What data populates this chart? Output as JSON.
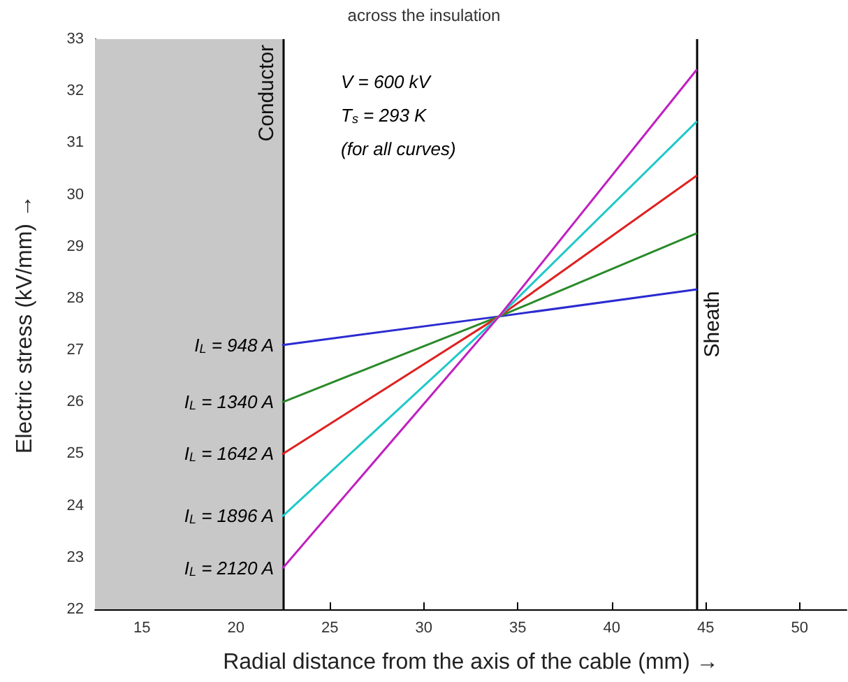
{
  "chart_data": {
    "type": "line",
    "title": "across the insulation",
    "xlabel": "Radial distance from the axis of the cable (mm) →",
    "ylabel": "Electric stress (kV/mm) →",
    "xlim": [
      12.5,
      52.5
    ],
    "xticks": [
      15,
      20,
      25,
      30,
      35,
      40,
      45,
      50
    ],
    "ylim": [
      22,
      33
    ],
    "yticks": [
      22,
      23,
      24,
      25,
      26,
      27,
      28,
      29,
      30,
      31,
      32,
      33
    ],
    "grid": false,
    "marker": "none",
    "line_style": "solid",
    "annotations": [
      "V = 600 kV",
      "T$_{s}$ = 293 K",
      "(for all curves)"
    ],
    "ref_lines": [
      {
        "axis": "x",
        "value": 22.5,
        "label": "Conductor",
        "color": "#000000"
      },
      {
        "axis": "x",
        "value": 44.5,
        "label": "Sheath",
        "color": "#000000"
      }
    ],
    "bands": [
      {
        "axis": "x",
        "from": 12.5,
        "to": 22.5,
        "color": "#c8c8c8"
      }
    ],
    "x": [
      22.5,
      34,
      44.5
    ],
    "series": [
      {
        "name": "I$_{L}$ = 948 A",
        "color": "#2b2bd0",
        "values": [
          27.1,
          27.65,
          28.17
        ]
      },
      {
        "name": "I$_{L}$ = 1340 A",
        "color": "#2a8a2a",
        "values": [
          26.0,
          27.65,
          29.25
        ]
      },
      {
        "name": "I$_{L}$ = 1642 A",
        "color": "#e02020",
        "values": [
          25.0,
          27.65,
          30.36
        ]
      },
      {
        "name": "I$_{L}$ = 1896 A",
        "color": "#20c8c8",
        "values": [
          23.8,
          27.65,
          31.4
        ]
      },
      {
        "name": "I$_{L}$ = 2120 A",
        "color": "#c020c0",
        "values": [
          22.8,
          27.65,
          32.4
        ]
      }
    ]
  }
}
